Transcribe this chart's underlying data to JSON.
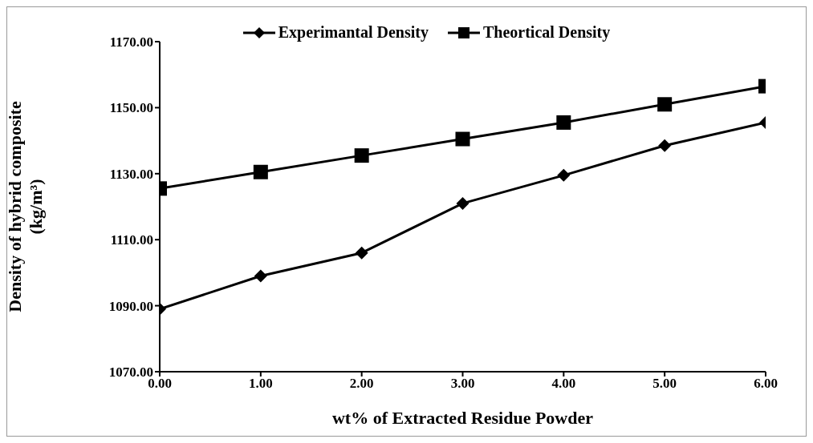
{
  "chart_data": {
    "type": "line",
    "xlabel": "wt% of Extracted Residue Powder",
    "ylabel": "Density of hybrid composite (kg/m³)",
    "x": [
      0,
      1,
      2,
      3,
      4,
      5,
      6
    ],
    "series": [
      {
        "name": "Experimantal Density",
        "color": "#000000",
        "marker": "diamond",
        "values": [
          1089,
          1099,
          1106,
          1121,
          1129.5,
          1138.5,
          1145.5
        ]
      },
      {
        "name": "Theortical Density",
        "color": "#000000",
        "marker": "square",
        "values": [
          1125.5,
          1130.5,
          1135.5,
          1140.5,
          1145.5,
          1151,
          1156.5
        ]
      }
    ],
    "xlim": [
      0,
      6
    ],
    "xticks": [
      {
        "value": 0,
        "label": "0.00"
      },
      {
        "value": 1,
        "label": "1.00"
      },
      {
        "value": 2,
        "label": "2.00"
      },
      {
        "value": 3,
        "label": "3.00"
      },
      {
        "value": 4,
        "label": "4.00"
      },
      {
        "value": 5,
        "label": "5.00"
      },
      {
        "value": 6,
        "label": "6.00"
      }
    ],
    "ylim": [
      1070,
      1170
    ],
    "yticks": [
      {
        "value": 1070,
        "label": "1070.00"
      },
      {
        "value": 1090,
        "label": "1090.00"
      },
      {
        "value": 1110,
        "label": "1110.00"
      },
      {
        "value": 1130,
        "label": "1130.00"
      },
      {
        "value": 1150,
        "label": "1150.00"
      },
      {
        "value": 1170,
        "label": "1170.00"
      }
    ],
    "grid": false,
    "legend": "top",
    "line_style": "solid"
  }
}
